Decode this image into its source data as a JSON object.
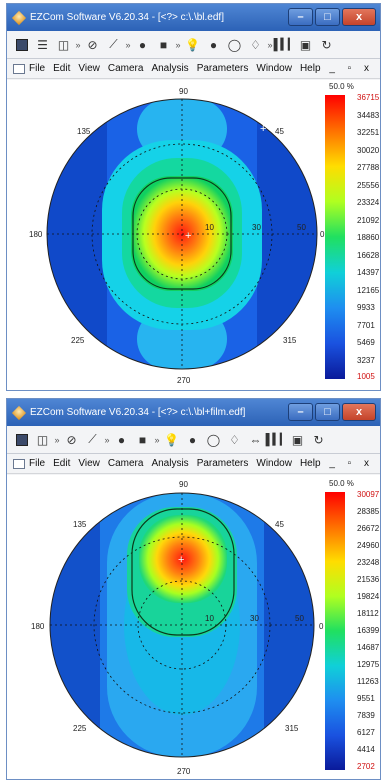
{
  "windows": [
    {
      "id": "top",
      "title": "EZCom Software V6.20.34 - [<?> c:\\.\\bl.edf]",
      "window_controls": [
        "–",
        "□",
        "x"
      ],
      "menu": [
        "File",
        "Edit",
        "View",
        "Camera",
        "Analysis",
        "Parameters",
        "Window",
        "Help"
      ],
      "mdi_controls": "_ ▫ x",
      "plot": {
        "angles": {
          "a90": "90",
          "a45": "45",
          "a135": "135",
          "a180": "180",
          "a0": "0",
          "a225": "225",
          "a315": "315",
          "a270": "270"
        },
        "radial": [
          "10",
          "30",
          "50"
        ],
        "scale_header": "50.0 %",
        "scale_max": "36715",
        "scale_ticks": [
          "34483",
          "32251",
          "30020",
          "27788",
          "25556",
          "23324",
          "21092",
          "18860",
          "16628",
          "14397",
          "12165",
          "9933",
          "7701",
          "5469",
          "3237"
        ],
        "scale_min": "1005"
      }
    },
    {
      "id": "bottom",
      "title": "EZCom Software V6.20.34 - [<?> c:\\.\\bl+film.edf]",
      "window_controls": [
        "–",
        "□",
        "x"
      ],
      "menu": [
        "File",
        "Edit",
        "View",
        "Camera",
        "Analysis",
        "Parameters",
        "Window",
        "Help"
      ],
      "mdi_controls": "_ ▫ x",
      "plot": {
        "angles": {
          "a90": "90",
          "a45": "45",
          "a135": "135",
          "a180": "180",
          "a0": "0",
          "a225": "225",
          "a315": "315",
          "a270": "270"
        },
        "radial": [
          "10",
          "30",
          "50"
        ],
        "scale_header": "50.0 %",
        "scale_max": "30097",
        "scale_ticks": [
          "28385",
          "26672",
          "24960",
          "23248",
          "21536",
          "19824",
          "18112",
          "16399",
          "14687",
          "12975",
          "11263",
          "9551",
          "7839",
          "6127",
          "4414"
        ],
        "scale_min": "2702"
      }
    }
  ],
  "colors": {
    "titlebar": "#2c62b6",
    "scale_min_text": "#d01010",
    "scale_max_text": "#d01010"
  },
  "toolbar_icons": [
    "save-icon",
    "layout-icon",
    "chevron-more-icon",
    "no-entry-icon",
    "axis-icon",
    "dot-icon",
    "stop-icon",
    "bulb-icon",
    "bar-chart-icon",
    "camera-icon",
    "refresh-icon"
  ]
}
